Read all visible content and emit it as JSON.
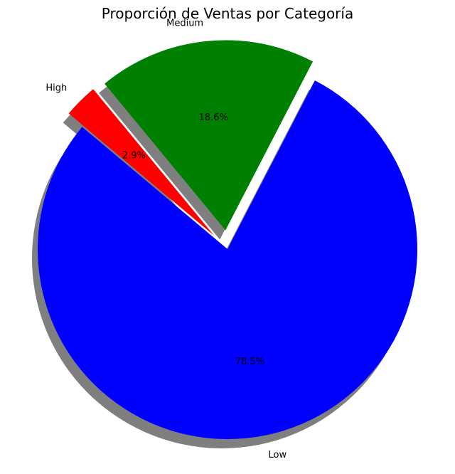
{
  "chart_data": {
    "type": "pie",
    "title": "Proporción de Ventas por Categoría",
    "categories": [
      "Low",
      "Medium",
      "High"
    ],
    "values": [
      78.5,
      18.6,
      2.9
    ],
    "value_labels": [
      "78.5%",
      "18.6%",
      "2.9%"
    ],
    "colors": [
      "#0000ff",
      "#008000",
      "#ff0000"
    ],
    "exploded": [
      false,
      true,
      true
    ],
    "shadow": true,
    "start_angle_deg": 140,
    "direction": "counterclockwise",
    "legend": "none"
  }
}
